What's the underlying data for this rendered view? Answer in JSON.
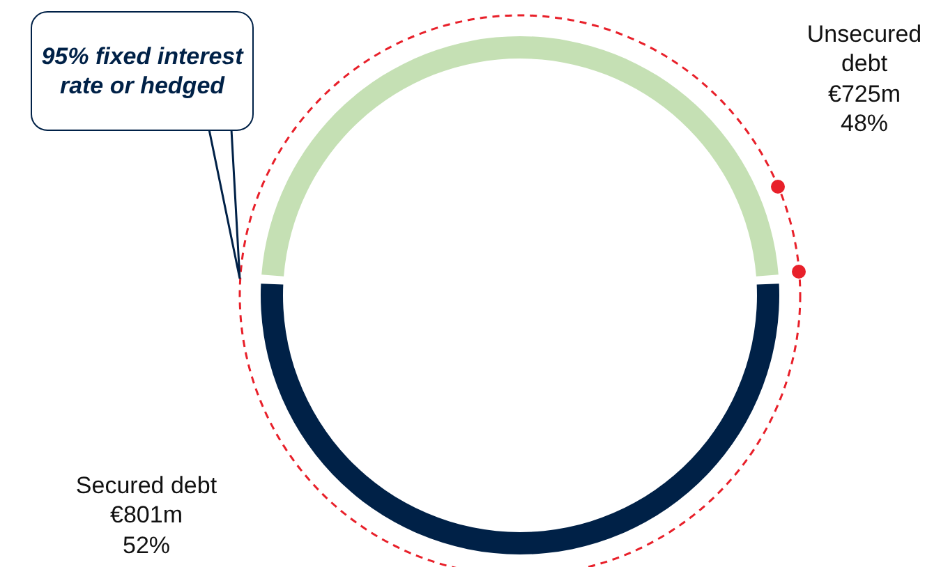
{
  "chart_data": {
    "type": "donut",
    "categories": [
      "Unsecured debt",
      "Secured debt"
    ],
    "values": [
      48,
      52
    ],
    "colors": [
      "#c5e0b4",
      "#002147"
    ],
    "value_labels": [
      "€725m\n48%",
      "€801m\n52%"
    ],
    "annotations": [
      "95% fixed interest rate or hedged"
    ],
    "legend": false
  }
}
